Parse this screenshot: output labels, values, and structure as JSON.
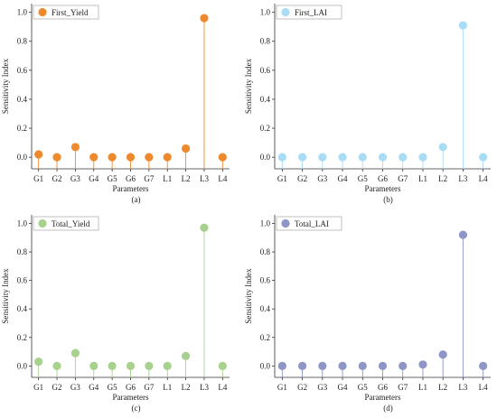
{
  "chart_data": [
    {
      "type": "lollipop",
      "legend": "First_Yield",
      "color": "#EE8A2E",
      "categories": [
        "G1",
        "G2",
        "G3",
        "G4",
        "G5",
        "G6",
        "G7",
        "L1",
        "L2",
        "L3",
        "L4"
      ],
      "values": [
        0.02,
        0.0,
        0.07,
        0.0,
        0.0,
        0.0,
        0.0,
        0.0,
        0.06,
        0.96,
        0.0
      ],
      "xlabel": "Parameters",
      "ylabel": "Sensitivity Index",
      "ylim": [
        -0.08,
        1.06
      ],
      "yticks": [
        "0.0",
        "0.2",
        "0.4",
        "0.6",
        "0.8",
        "1.0"
      ],
      "caption": "(a)",
      "legend_position": "top-left",
      "grid": false
    },
    {
      "type": "lollipop",
      "legend": "First_LAI",
      "color": "#A9DCF5",
      "categories": [
        "G1",
        "G2",
        "G3",
        "G4",
        "G5",
        "G6",
        "G7",
        "L1",
        "L2",
        "L3",
        "L4"
      ],
      "values": [
        0.0,
        0.0,
        0.0,
        0.0,
        0.0,
        0.0,
        0.0,
        0.0,
        0.07,
        0.91,
        0.0
      ],
      "xlabel": "Parameters",
      "ylabel": "Sensitivity Index",
      "ylim": [
        -0.08,
        1.06
      ],
      "yticks": [
        "0.0",
        "0.2",
        "0.4",
        "0.6",
        "0.8",
        "1.0"
      ],
      "caption": "(b)",
      "legend_position": "top-left",
      "grid": false
    },
    {
      "type": "lollipop",
      "legend": "Total_Yield",
      "color": "#A9D18E",
      "categories": [
        "G1",
        "G2",
        "G3",
        "G4",
        "G5",
        "G6",
        "G7",
        "L1",
        "L2",
        "L3",
        "L4"
      ],
      "values": [
        0.03,
        0.0,
        0.09,
        0.0,
        0.0,
        0.0,
        0.0,
        0.0,
        0.07,
        0.97,
        0.0
      ],
      "xlabel": "Parameters",
      "ylabel": "Sensitivity Index",
      "ylim": [
        -0.08,
        1.06
      ],
      "yticks": [
        "0.0",
        "0.2",
        "0.4",
        "0.6",
        "0.8",
        "1.0"
      ],
      "caption": "(c)",
      "legend_position": "top-left",
      "grid": false
    },
    {
      "type": "lollipop",
      "legend": "Total_LAI",
      "color": "#8E95C7",
      "categories": [
        "G1",
        "G2",
        "G3",
        "G4",
        "G5",
        "G6",
        "G7",
        "L1",
        "L2",
        "L3",
        "L4"
      ],
      "values": [
        0.0,
        0.0,
        0.0,
        0.0,
        0.0,
        0.0,
        0.0,
        0.01,
        0.08,
        0.92,
        0.0
      ],
      "xlabel": "Parameters",
      "ylabel": "Sensitivity Index",
      "ylim": [
        -0.08,
        1.06
      ],
      "yticks": [
        "0.0",
        "0.2",
        "0.4",
        "0.6",
        "0.8",
        "1.0"
      ],
      "caption": "(d)",
      "legend_position": "top-left",
      "grid": false
    }
  ]
}
